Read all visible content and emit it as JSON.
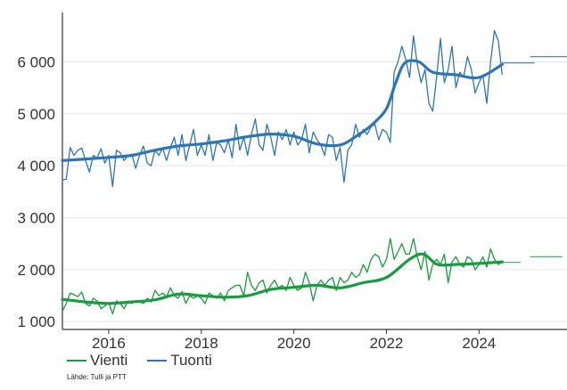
{
  "chart_data": {
    "type": "line",
    "title": "",
    "xlabel": "",
    "ylabel": "",
    "xlim": [
      2015.0,
      2025.9
    ],
    "ylim": [
      850,
      6950
    ],
    "x_ticks": [
      2016,
      2018,
      2020,
      2022,
      2024
    ],
    "x_tick_labels": [
      "2016",
      "2018",
      "2020",
      "2022",
      "2024"
    ],
    "y_ticks": [
      1000,
      2000,
      3000,
      4000,
      5000,
      6000
    ],
    "y_tick_labels": [
      "1 000",
      "2 000",
      "3 000",
      "4 000",
      "5 000",
      "6 000"
    ],
    "grid": "horizontal",
    "legend_position": "bottom-left",
    "series": [
      {
        "name": "Tuonti",
        "color": "#2e75b6",
        "monthly": {
          "x_start": 2015.0,
          "x_step": 0.08333,
          "values": [
            3730,
            3740,
            4350,
            4200,
            4300,
            4340,
            4100,
            3880,
            4200,
            4150,
            4330,
            4050,
            4200,
            3600,
            4300,
            4250,
            4100,
            4200,
            4220,
            3950,
            4200,
            4380,
            4050,
            4000,
            4300,
            4200,
            4340,
            4100,
            4350,
            4550,
            4200,
            4600,
            4100,
            4400,
            4700,
            4200,
            4400,
            4200,
            4600,
            4100,
            4450,
            4400,
            4250,
            4500,
            4150,
            4800,
            4300,
            4550,
            4200,
            4600,
            4900,
            4400,
            4300,
            4800,
            4550,
            4200,
            4650,
            4500,
            4700,
            4400,
            4650,
            4400,
            4500,
            4800,
            4250,
            4650,
            4500,
            4400,
            4200,
            4600,
            4550,
            4100,
            4350,
            3680,
            4300,
            4400,
            4800,
            4550,
            4700,
            4600,
            4750,
            4800,
            4500,
            4700,
            4640,
            4450,
            5800,
            6000,
            6300,
            6050,
            5700,
            6500,
            5950,
            5600,
            5850,
            5200,
            5050,
            5700,
            6450,
            5600,
            5850,
            6300,
            5500,
            5800,
            5700,
            6100,
            5850,
            5400,
            5600,
            5750,
            5200,
            6000,
            6600,
            6400,
            5750
          ]
        },
        "trend": {
          "x": [
            2015.0,
            2015.5,
            2016.0,
            2016.5,
            2017.0,
            2017.5,
            2018.0,
            2018.5,
            2019.0,
            2019.5,
            2020.0,
            2020.5,
            2021.0,
            2021.4,
            2021.7,
            2022.0,
            2022.2,
            2022.4,
            2022.7,
            2023.0,
            2023.5,
            2024.0,
            2024.5
          ],
          "y": [
            4100,
            4130,
            4160,
            4200,
            4300,
            4380,
            4420,
            4480,
            4560,
            4610,
            4570,
            4420,
            4400,
            4600,
            4800,
            5100,
            5600,
            5980,
            6000,
            5800,
            5750,
            5700,
            5950
          ]
        },
        "forecast": {
          "x": [
            2024.5,
            2025.2
          ],
          "y": [
            5980,
            5980
          ]
        },
        "forecast2": {
          "x": [
            2025.1,
            2025.9
          ],
          "y": [
            6100,
            6100
          ]
        }
      },
      {
        "name": "Vienti",
        "color": "#199b3f",
        "monthly": {
          "x_start": 2015.0,
          "x_step": 0.08333,
          "values": [
            1200,
            1350,
            1550,
            1520,
            1480,
            1570,
            1350,
            1300,
            1450,
            1400,
            1250,
            1300,
            1370,
            1150,
            1400,
            1350,
            1250,
            1400,
            1350,
            1400,
            1380,
            1350,
            1450,
            1380,
            1600,
            1500,
            1550,
            1480,
            1650,
            1500,
            1450,
            1580,
            1350,
            1500,
            1450,
            1500,
            1450,
            1350,
            1550,
            1500,
            1450,
            1550,
            1400,
            1600,
            1650,
            1700,
            1700,
            1500,
            1950,
            1700,
            1600,
            1750,
            1800,
            1550,
            1700,
            1800,
            1650,
            1700,
            1600,
            1850,
            1700,
            1600,
            1650,
            1950,
            1750,
            1400,
            1700,
            1800,
            1700,
            1800,
            1850,
            1600,
            1850,
            1750,
            1800,
            1950,
            1850,
            1900,
            2100,
            1950,
            2200,
            2300,
            2250,
            2050,
            2200,
            2600,
            2200,
            2350,
            2500,
            2300,
            2300,
            2600,
            2250,
            2000,
            2350,
            1800,
            2100,
            2200,
            2100,
            2300,
            1750,
            2150,
            2250,
            2100,
            2050,
            2250,
            2200,
            2000,
            2100,
            2250,
            2050,
            2400,
            2200,
            2100,
            2150
          ]
        },
        "trend": {
          "x": [
            2015.0,
            2015.5,
            2016.0,
            2016.5,
            2017.0,
            2017.5,
            2018.0,
            2018.5,
            2019.0,
            2019.5,
            2020.0,
            2020.5,
            2021.0,
            2021.5,
            2022.0,
            2022.5,
            2022.8,
            2023.1,
            2023.5,
            2024.0,
            2024.5
          ],
          "y": [
            1430,
            1380,
            1350,
            1380,
            1420,
            1530,
            1500,
            1470,
            1500,
            1620,
            1660,
            1700,
            1650,
            1750,
            1850,
            2200,
            2300,
            2100,
            2100,
            2120,
            2150
          ]
        },
        "forecast": {
          "x": [
            2024.5,
            2024.9
          ],
          "y": [
            2140,
            2140
          ]
        },
        "forecast2": {
          "x": [
            2025.1,
            2025.8
          ],
          "y": [
            2250,
            2250
          ]
        }
      }
    ],
    "legend_entries": [
      "Vienti",
      "Tuonti"
    ]
  },
  "legend": {
    "vienti_label": "Vienti",
    "tuonti_label": "Tuonti"
  },
  "source": "Lähde: Tulli ja PTT",
  "colors": {
    "tuonti": "#2e75b6",
    "vienti": "#199b3f",
    "axis": "#333333",
    "grid": "#e6e6e6"
  }
}
